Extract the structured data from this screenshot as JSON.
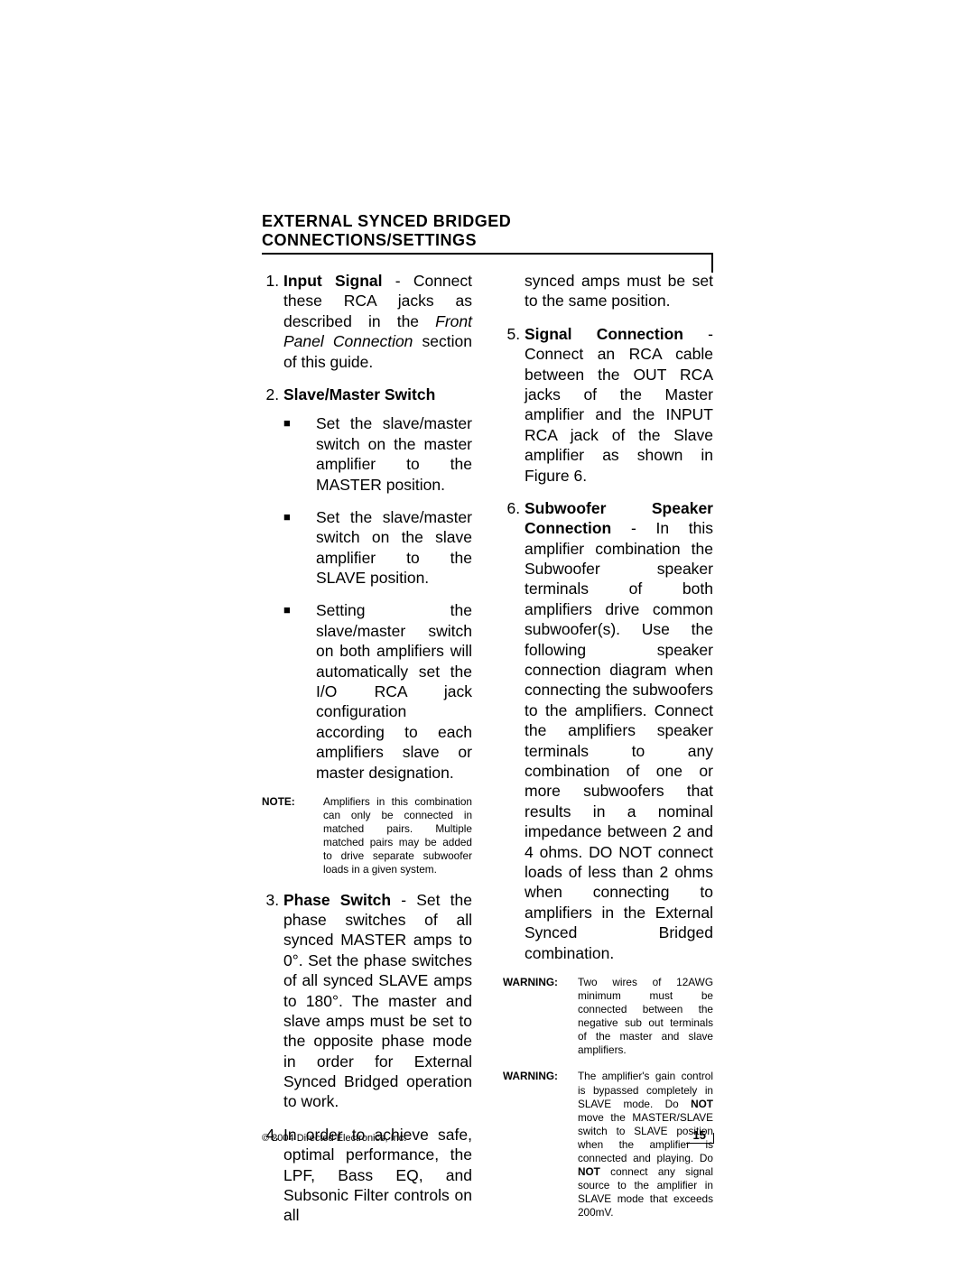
{
  "heading": "EXTERNAL SYNCED BRIDGED CONNECTIONS/SETTINGS",
  "item1_bold": "Input Signal",
  "item1_rest_a": " - Connect these RCA jacks as described in the ",
  "item1_italic": "Front Panel Connection",
  "item1_rest_b": " section of this guide.",
  "item2_bold": "Slave/Master Switch",
  "item2_bullet1": "Set the slave/master switch on the master amplifier to the MASTER position.",
  "item2_bullet2": "Set the slave/master switch on the slave amplifier to the SLAVE position.",
  "item2_bullet3": "Setting the slave/master switch on both amplifiers will automatically set the I/O RCA jack configuration according to each amplifiers slave or master designation.",
  "note1_label": "NOTE:",
  "note1_body": "Amplifiers in this combination can only be connected in matched pairs. Multiple matched pairs may be added to drive separate subwoofer loads in a given system.",
  "item3_bold": "Phase Switch",
  "item3_rest": " - Set the phase switches of all synced MASTER amps to 0°. Set the phase switches of all synced SLAVE amps to 180°. The master and slave amps must be set to the opposite phase mode in order for External Synced Bridged operation to work.",
  "item4_part1": "In order to achieve safe, optimal performance, the LPF, Bass EQ, and Subsonic Filter controls on all",
  "item4_part2": "synced amps must be set to the same position.",
  "item5_bold": "Signal Connection",
  "item5_rest": " - Connect an RCA cable between the OUT RCA jacks of the Master amplifier and the INPUT RCA jack of the Slave amplifier as shown in Figure 6.",
  "item6_bold": "Subwoofer Speaker Connection",
  "item6_rest": " - In this amplifier combination the Subwoofer speaker terminals of both amplifiers drive common subwoofer(s). Use the following speaker connection diagram when connecting the subwoofers to the amplifiers. Connect the amplifiers speaker terminals to any combination of one or more subwoofers that results in a nominal impedance between 2 and 4 ohms. DO NOT connect loads of less than 2 ohms when connecting to amplifiers in the External Synced Bridged combination.",
  "warn1_label": "WARNING:",
  "warn1_body": "Two wires of 12AWG minimum must be connected between the negative sub out terminals of the master and slave amplifiers.",
  "warn2_label": "WARNING:",
  "warn2_body_a": "The amplifier's gain control is bypassed completely in SLAVE mode. Do ",
  "warn2_not1": "NOT",
  "warn2_body_b": " move the MASTER/SLAVE switch to SLAVE position when the amplifier is connected and playing. Do ",
  "warn2_not2": "NOT",
  "warn2_body_c": " connect any signal source to the amplifier in SLAVE mode that exceeds 200mV.",
  "copyright": "© 2004 Directed Electronics, Inc.",
  "page_number": "15"
}
